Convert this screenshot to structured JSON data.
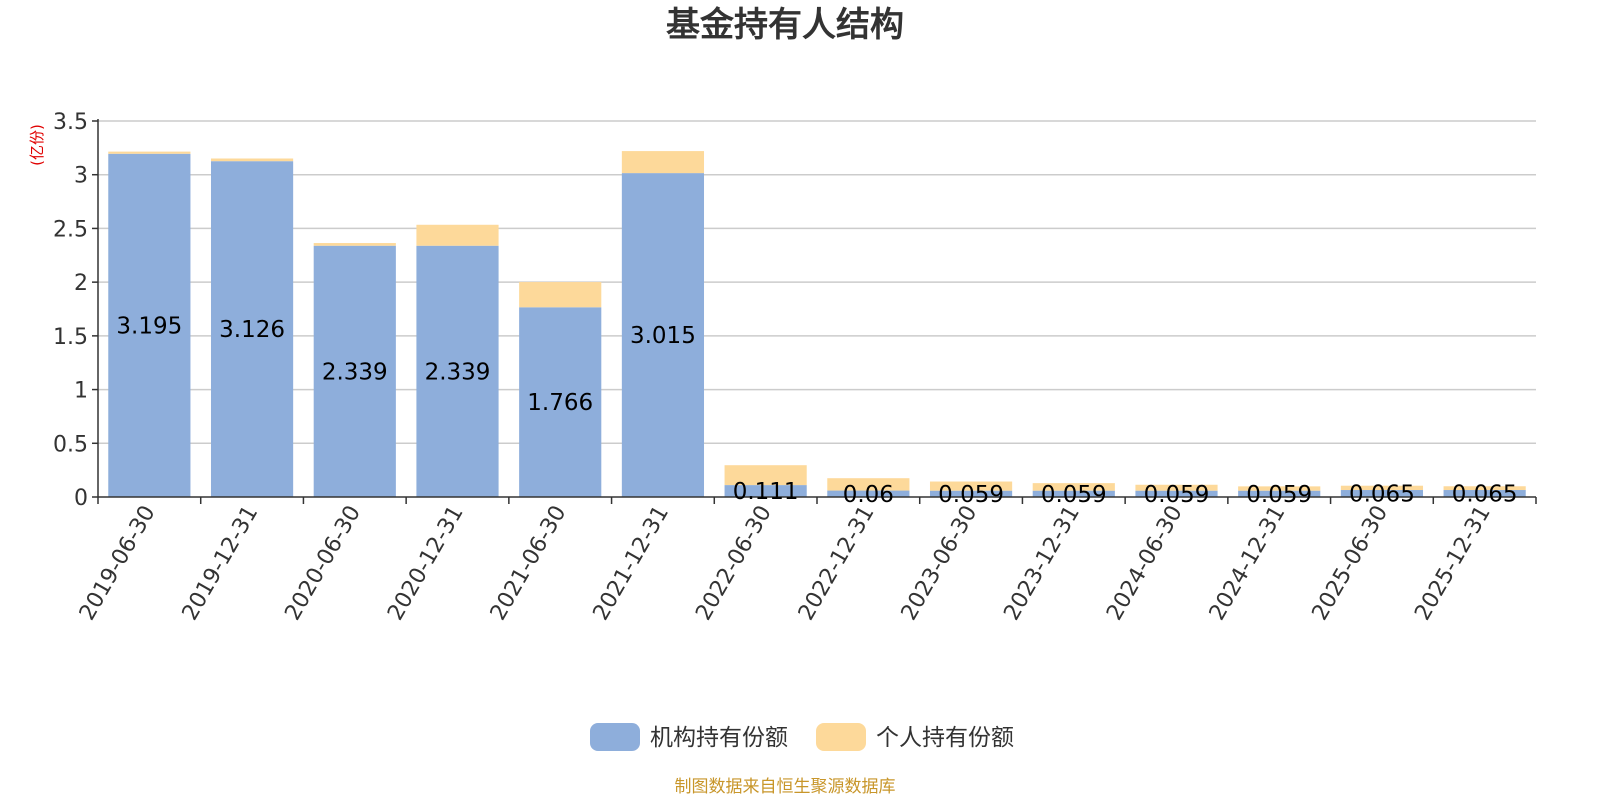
{
  "chart_data": {
    "type": "bar",
    "stacked": true,
    "title": "基金持有人结构",
    "unit_label": "(亿份)",
    "categories": [
      "2019-06-30",
      "2019-12-31",
      "2020-06-30",
      "2020-12-31",
      "2021-06-30",
      "2021-12-31",
      "2022-06-30",
      "2022-12-31",
      "2023-06-30",
      "2023-12-31",
      "2024-06-30",
      "2024-12-31",
      "2025-06-30",
      "2025-12-31"
    ],
    "series": [
      {
        "name": "机构持有份额",
        "color": "#8eaedb",
        "values": [
          3.195,
          3.126,
          2.339,
          2.339,
          1.766,
          3.015,
          0.111,
          0.06,
          0.059,
          0.059,
          0.059,
          0.059,
          0.065,
          0.065
        ],
        "labels": [
          "3.195",
          "3.126",
          "2.339",
          "2.339",
          "1.766",
          "3.015",
          "0.111",
          "0.06",
          "0.059",
          "0.059",
          "0.059",
          "0.059",
          "0.065",
          "0.065"
        ]
      },
      {
        "name": "个人持有份额",
        "color": "#fdd99a",
        "values": [
          0.02,
          0.025,
          0.025,
          0.195,
          0.235,
          0.205,
          0.185,
          0.115,
          0.085,
          0.07,
          0.055,
          0.04,
          0.04,
          0.035
        ]
      }
    ],
    "ylim": [
      0,
      3.5
    ],
    "yticks": [
      "0",
      "0.5",
      "1",
      "1.5",
      "2",
      "2.5",
      "3",
      "3.5"
    ],
    "grid": true,
    "legend_position": "bottom-center"
  },
  "source_note": "制图数据来自恒生聚源数据库"
}
